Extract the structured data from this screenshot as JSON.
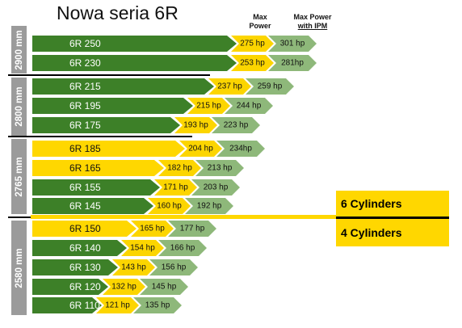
{
  "title": "Nowa seria 6R",
  "headers": {
    "max_line1": "Max",
    "max_line2": "Power",
    "ipm_line1": "Max Power",
    "ipm_line2": "with IPM"
  },
  "wheelbase_groups": [
    {
      "label": "2900 mm"
    },
    {
      "label": "2800 mm"
    },
    {
      "label": "2765 mm"
    },
    {
      "label": "2580 mm"
    }
  ],
  "cylinder_labels": {
    "six": "6 Cylinders",
    "four": "4 Cylinders"
  },
  "models": [
    {
      "name": "6R 250",
      "max_power": "275 hp",
      "max_ipm": "301 hp",
      "group": "2900 mm",
      "cylinders": 6
    },
    {
      "name": "6R 230",
      "max_power": "253 hp",
      "max_ipm": "281hp",
      "group": "2900 mm",
      "cylinders": 6
    },
    {
      "name": "6R 215",
      "max_power": "237 hp",
      "max_ipm": "259 hp",
      "group": "2800 mm",
      "cylinders": 6
    },
    {
      "name": "6R 195",
      "max_power": "215 hp",
      "max_ipm": "244 hp",
      "group": "2800 mm",
      "cylinders": 6
    },
    {
      "name": "6R 175",
      "max_power": "193 hp",
      "max_ipm": "223 hp",
      "group": "2800 mm",
      "cylinders": 6
    },
    {
      "name": "6R 185",
      "max_power": "204 hp",
      "max_ipm": "234hp",
      "group": "2765 mm",
      "cylinders": 6
    },
    {
      "name": "6R 165",
      "max_power": "182 hp",
      "max_ipm": "213 hp",
      "group": "2765 mm",
      "cylinders": 6
    },
    {
      "name": "6R 155",
      "max_power": "171 hp",
      "max_ipm": "203 hp",
      "group": "2765 mm",
      "cylinders": 6
    },
    {
      "name": "6R 145",
      "max_power": "160 hp",
      "max_ipm": "192 hp",
      "group": "2765 mm",
      "cylinders": 6
    },
    {
      "name": "6R 150",
      "max_power": "165 hp",
      "max_ipm": "177 hp",
      "group": "2580 mm",
      "cylinders": 4
    },
    {
      "name": "6R 140",
      "max_power": "154 hp",
      "max_ipm": "166 hp",
      "group": "2580 mm",
      "cylinders": 4
    },
    {
      "name": "6R 130",
      "max_power": "143 hp",
      "max_ipm": "156 hp",
      "group": "2580 mm",
      "cylinders": 4
    },
    {
      "name": "6R 120",
      "max_power": "132 hp",
      "max_ipm": "145 hp",
      "group": "2580 mm",
      "cylinders": 4
    },
    {
      "name": "6R 110",
      "max_power": "121 hp",
      "max_ipm": "135 hp",
      "group": "2580 mm",
      "cylinders": 4
    }
  ],
  "colors": {
    "model_green": "#3d8028",
    "model_yellow": "#ffd700",
    "max_power_yellow": "#fcd500",
    "ipm_green": "#8eb87a",
    "wheelbase_gray": "#9b9b9b"
  }
}
